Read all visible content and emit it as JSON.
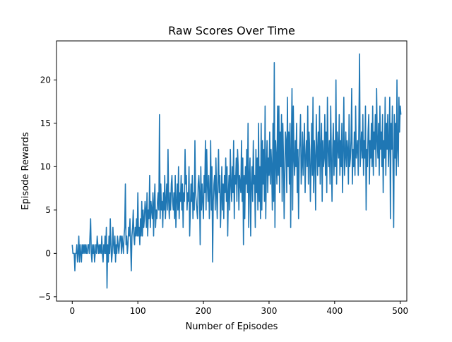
{
  "chart_data": {
    "type": "line",
    "title": "Raw Scores Over Time",
    "xlabel": "Number of Episodes",
    "ylabel": "Episode Rewards",
    "xlim": [
      -24,
      510
    ],
    "ylim": [
      -5.5,
      24.5
    ],
    "xticks": [
      0,
      100,
      200,
      300,
      400,
      500
    ],
    "yticks": [
      -5,
      0,
      5,
      10,
      15,
      20
    ],
    "grid": false,
    "legend": "none",
    "series": [
      {
        "color": "#1f77b4",
        "x_start": 0,
        "x_step": 1,
        "y": [
          1,
          0,
          0,
          0,
          -2,
          0,
          0,
          1,
          -1,
          0,
          2,
          -1,
          1,
          0,
          -1,
          1,
          0,
          1,
          0,
          1,
          0,
          1,
          0,
          0,
          1,
          1,
          0,
          2,
          4,
          0,
          -1,
          1,
          0,
          1,
          -1,
          0,
          1,
          0,
          2,
          1,
          0,
          1,
          0,
          1,
          0,
          2,
          0,
          -1,
          1,
          0,
          2,
          0,
          3,
          -4,
          1,
          -1,
          2,
          0,
          4,
          1,
          -1,
          0,
          3,
          1,
          0,
          2,
          -1,
          1,
          0,
          2,
          1,
          0,
          1,
          2,
          2,
          0,
          2,
          1,
          0,
          2,
          3,
          8,
          1,
          2,
          0,
          1,
          3,
          2,
          4,
          1,
          -2,
          2,
          3,
          5,
          2,
          1,
          3,
          2,
          4,
          2,
          7,
          2,
          3,
          1,
          4,
          2,
          6,
          2,
          5,
          3,
          4,
          6,
          5,
          3,
          7,
          2,
          5,
          4,
          9,
          3,
          6,
          5,
          4,
          7,
          2,
          6,
          8,
          3,
          5,
          4,
          6,
          7,
          5,
          16,
          4,
          8,
          5,
          6,
          3,
          7,
          5,
          9,
          4,
          6,
          8,
          5,
          12,
          6,
          4,
          7,
          5,
          8,
          9,
          6,
          5,
          7,
          4,
          9,
          3,
          6,
          8,
          5,
          10,
          4,
          7,
          6,
          9,
          5,
          8,
          3,
          7,
          6,
          12,
          8,
          9,
          5,
          7,
          6,
          10,
          2,
          5,
          8,
          6,
          9,
          4,
          7,
          5,
          13,
          7,
          6,
          5,
          4,
          8,
          9,
          7,
          1,
          10,
          5,
          8,
          6,
          4,
          9,
          7,
          13,
          5,
          12,
          8,
          6,
          9,
          4,
          7,
          13,
          5,
          10,
          -1,
          6,
          8,
          9,
          5,
          11,
          7,
          4,
          8,
          12,
          7,
          9,
          3,
          6,
          10,
          5,
          8,
          4,
          9,
          7,
          11,
          6,
          10,
          2,
          7,
          9,
          5,
          12,
          8,
          6,
          10,
          7,
          13,
          4,
          9,
          8,
          11,
          6,
          12,
          10,
          5,
          9,
          8,
          7,
          13,
          6,
          11,
          1,
          9,
          4,
          10,
          8,
          12,
          7,
          15,
          3,
          9,
          11,
          2,
          8,
          10,
          6,
          13,
          8,
          9,
          3,
          12,
          7,
          11,
          5,
          15,
          6,
          10,
          4,
          15,
          5,
          13,
          8,
          12,
          6,
          17,
          4,
          10,
          13,
          7,
          11,
          9,
          14,
          8,
          12,
          10,
          5,
          15,
          6,
          22,
          3,
          13,
          11,
          8,
          17,
          9,
          17,
          7,
          14,
          10,
          16,
          6,
          15,
          11,
          4,
          9,
          14,
          13,
          7,
          18,
          10,
          14,
          8,
          15,
          3,
          12,
          19,
          5,
          17,
          11,
          9,
          13,
          10,
          15,
          7,
          12,
          4,
          11,
          13,
          16,
          8,
          10,
          14,
          9,
          12,
          15,
          7,
          11,
          13,
          10,
          17,
          8,
          14,
          12,
          6,
          10,
          15,
          9,
          18,
          7,
          13,
          11,
          5,
          16,
          12,
          9,
          14,
          10,
          17,
          8,
          12,
          15,
          6,
          13,
          10,
          11,
          16,
          9,
          14,
          7,
          18,
          12,
          10,
          13,
          8,
          17,
          11,
          6,
          12,
          15,
          9,
          13,
          10,
          20,
          8,
          14,
          12,
          11,
          16,
          9,
          13,
          10,
          15,
          7,
          12,
          18,
          9,
          11,
          14,
          10,
          13,
          12,
          8,
          16,
          10,
          11,
          13,
          19,
          8,
          12,
          10,
          14,
          9,
          17,
          11,
          12,
          13,
          9,
          15,
          23,
          10,
          12,
          14,
          11,
          16,
          9,
          13,
          11,
          17,
          5,
          12,
          10,
          14,
          16,
          8,
          13,
          11,
          15,
          10,
          17,
          9,
          14,
          12,
          16,
          10,
          19,
          13,
          11,
          15,
          9,
          17,
          12,
          14,
          10,
          16,
          7,
          13,
          11,
          18,
          9,
          15,
          12,
          16,
          10,
          13,
          18,
          4,
          15,
          12,
          17,
          10,
          3,
          16,
          11,
          15,
          9,
          20,
          12,
          10,
          18,
          14,
          17,
          16
        ]
      }
    ]
  }
}
